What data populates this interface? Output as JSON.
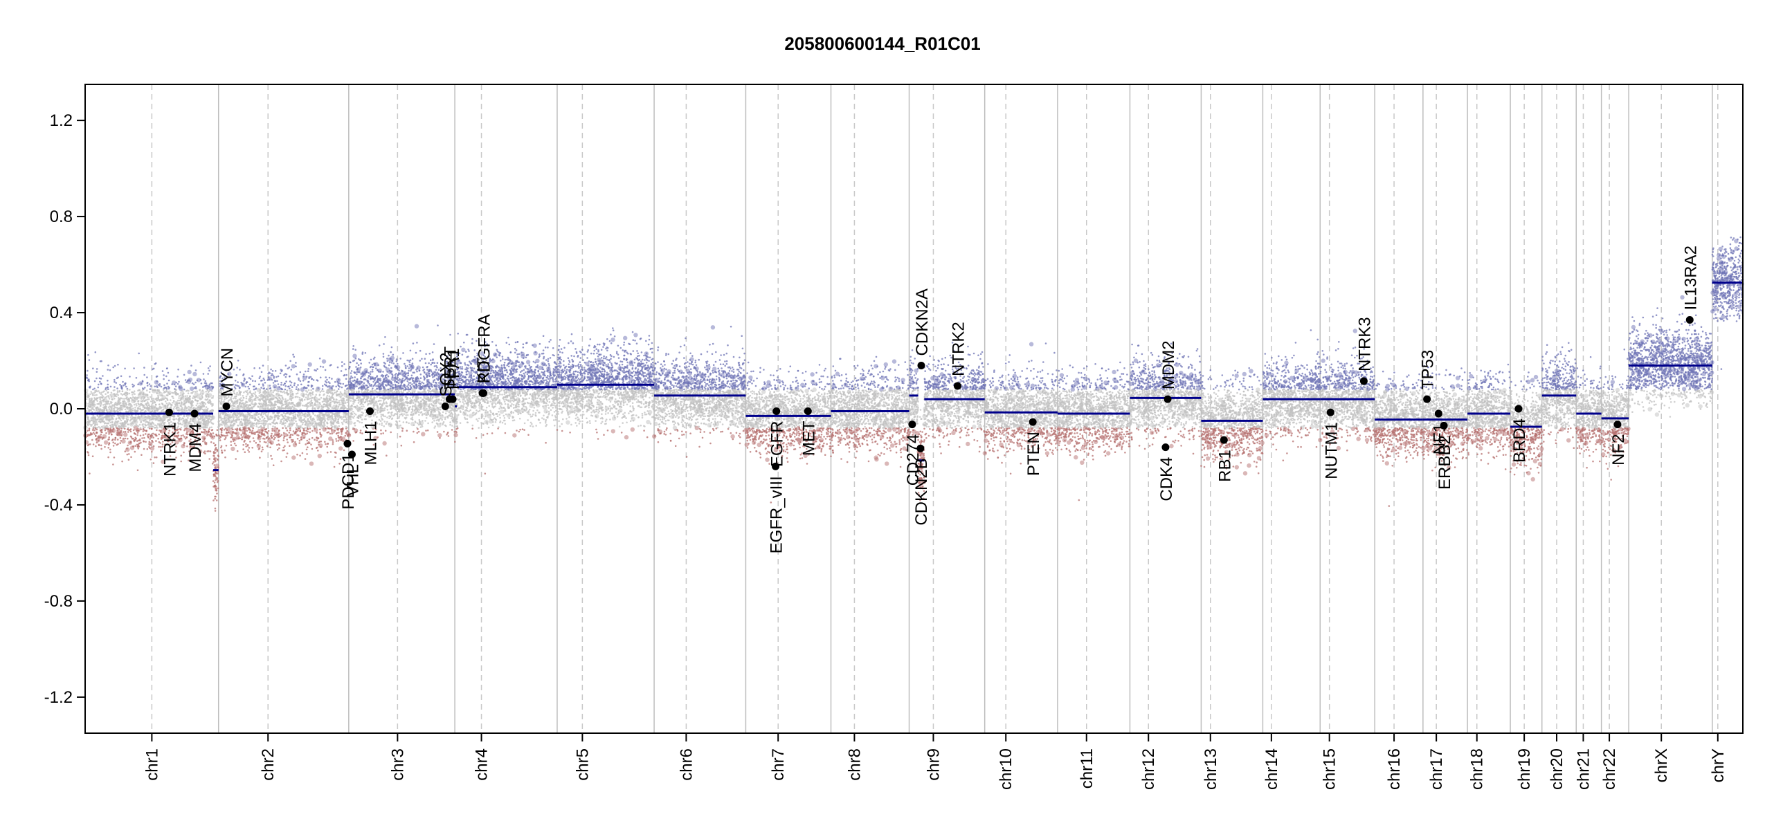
{
  "chart_data": {
    "type": "scatter",
    "title": "205800600144_R01C01",
    "xlabel": "",
    "ylabel": "",
    "ylim": [
      -1.35,
      1.35
    ],
    "yticks": [
      -1.2,
      -0.8,
      -0.4,
      0.0,
      0.4,
      0.8,
      1.2
    ],
    "ytick_labels": [
      "-1.2",
      "-0.8",
      "-0.4",
      "0.0",
      "0.4",
      "0.8",
      "1.2"
    ],
    "colors": {
      "axis": "#000000",
      "boundary": "#bdbdbd",
      "centromere": "#c8c8c8",
      "segment": "#00008b",
      "gain_points": "#6f74b5",
      "loss_points": "#b5706f",
      "neutral_points": "#c0c0c0",
      "gene_dot": "#000000"
    },
    "chromosomes": [
      {
        "name": "chr1",
        "size": 249,
        "centromere": 0.5
      },
      {
        "name": "chr2",
        "size": 243,
        "centromere": 0.38
      },
      {
        "name": "chr3",
        "size": 198,
        "centromere": 0.46
      },
      {
        "name": "chr4",
        "size": 191,
        "centromere": 0.26
      },
      {
        "name": "chr5",
        "size": 181,
        "centromere": 0.26
      },
      {
        "name": "chr6",
        "size": 171,
        "centromere": 0.35
      },
      {
        "name": "chr7",
        "size": 159,
        "centromere": 0.38
      },
      {
        "name": "chr8",
        "size": 146,
        "centromere": 0.3
      },
      {
        "name": "chr9",
        "size": 141,
        "centromere": 0.32
      },
      {
        "name": "chr10",
        "size": 136,
        "centromere": 0.29
      },
      {
        "name": "chr11",
        "size": 135,
        "centromere": 0.4
      },
      {
        "name": "chr12",
        "size": 133,
        "centromere": 0.26
      },
      {
        "name": "chr13",
        "size": 115,
        "centromere": 0.15
      },
      {
        "name": "chr14",
        "size": 107,
        "centromere": 0.15
      },
      {
        "name": "chr15",
        "size": 102,
        "centromere": 0.17
      },
      {
        "name": "chr16",
        "size": 90,
        "centromere": 0.4
      },
      {
        "name": "chr17",
        "size": 83,
        "centromere": 0.3
      },
      {
        "name": "chr18",
        "size": 80,
        "centromere": 0.22
      },
      {
        "name": "chr19",
        "size": 59,
        "centromere": 0.44
      },
      {
        "name": "chr20",
        "size": 64,
        "centromere": 0.43
      },
      {
        "name": "chr21",
        "size": 47,
        "centromere": 0.28
      },
      {
        "name": "chr22",
        "size": 51,
        "centromere": 0.29
      },
      {
        "name": "chrX",
        "size": 156,
        "centromere": 0.39
      },
      {
        "name": "chrY",
        "size": 57,
        "centromere": 0.18
      }
    ],
    "segments": [
      {
        "chr": "chr1",
        "start": 0.0,
        "end": 0.96,
        "value": -0.02
      },
      {
        "chr": "chr1",
        "start": 0.96,
        "end": 1.0,
        "value": -0.255
      },
      {
        "chr": "chr2",
        "start": 0.0,
        "end": 1.0,
        "value": -0.01
      },
      {
        "chr": "chr3",
        "start": 0.0,
        "end": 1.0,
        "value": 0.06
      },
      {
        "chr": "chr4",
        "start": 0.0,
        "end": 0.02,
        "value": 0.01
      },
      {
        "chr": "chr4",
        "start": 0.02,
        "end": 1.0,
        "value": 0.09
      },
      {
        "chr": "chr5",
        "start": 0.0,
        "end": 1.0,
        "value": 0.1
      },
      {
        "chr": "chr6",
        "start": 0.0,
        "end": 1.0,
        "value": 0.055
      },
      {
        "chr": "chr7",
        "start": 0.0,
        "end": 1.0,
        "value": -0.03
      },
      {
        "chr": "chr8",
        "start": 0.0,
        "end": 1.0,
        "value": -0.01
      },
      {
        "chr": "chr9",
        "start": 0.0,
        "end": 0.12,
        "value": 0.055
      },
      {
        "chr": "chr9",
        "start": 0.12,
        "end": 0.2,
        "value": -0.215
      },
      {
        "chr": "chr9",
        "start": 0.2,
        "end": 1.0,
        "value": 0.04
      },
      {
        "chr": "chr10",
        "start": 0.0,
        "end": 1.0,
        "value": -0.015
      },
      {
        "chr": "chr11",
        "start": 0.0,
        "end": 1.0,
        "value": -0.02
      },
      {
        "chr": "chr12",
        "start": 0.0,
        "end": 1.0,
        "value": 0.045
      },
      {
        "chr": "chr13",
        "start": 0.0,
        "end": 1.0,
        "value": -0.05
      },
      {
        "chr": "chr14",
        "start": 0.0,
        "end": 1.0,
        "value": 0.04
      },
      {
        "chr": "chr15",
        "start": 0.0,
        "end": 1.0,
        "value": 0.04
      },
      {
        "chr": "chr16",
        "start": 0.0,
        "end": 1.0,
        "value": -0.045
      },
      {
        "chr": "chr17",
        "start": 0.0,
        "end": 1.0,
        "value": -0.045
      },
      {
        "chr": "chr18",
        "start": 0.0,
        "end": 1.0,
        "value": -0.02
      },
      {
        "chr": "chr19",
        "start": 0.0,
        "end": 1.0,
        "value": -0.075
      },
      {
        "chr": "chr20",
        "start": 0.0,
        "end": 1.0,
        "value": 0.055
      },
      {
        "chr": "chr21",
        "start": 0.0,
        "end": 1.0,
        "value": -0.02
      },
      {
        "chr": "chr22",
        "start": 0.0,
        "end": 1.0,
        "value": -0.04
      },
      {
        "chr": "chrX",
        "start": 0.0,
        "end": 1.0,
        "value": 0.18
      },
      {
        "chr": "chrY",
        "start": 0.0,
        "end": 1.0,
        "value": 0.525
      }
    ],
    "genes": [
      {
        "name": "NTRK1",
        "chr": "chr1",
        "pos": 0.63,
        "value": -0.015,
        "label_side": "below"
      },
      {
        "name": "MDM4",
        "chr": "chr1",
        "pos": 0.82,
        "value": -0.02,
        "label_side": "below"
      },
      {
        "name": "MYCN",
        "chr": "chr2",
        "pos": 0.06,
        "value": 0.01,
        "label_side": "above"
      },
      {
        "name": "PDCD1",
        "chr": "chr2",
        "pos": 0.99,
        "value": -0.145,
        "label_side": "below"
      },
      {
        "name": "VHL",
        "chr": "chr3",
        "pos": 0.03,
        "value": -0.19,
        "label_side": "below"
      },
      {
        "name": "MLH1",
        "chr": "chr3",
        "pos": 0.2,
        "value": -0.01,
        "label_side": "below"
      },
      {
        "name": "SOX2",
        "chr": "chr3",
        "pos": 0.91,
        "value": 0.01,
        "label_side": "above"
      },
      {
        "name": "TERT",
        "chr": "chr5",
        "pos": -0.85,
        "value": 0.04,
        "label_side": "above",
        "pos_override_chr": "chr3"
      },
      {
        "name": "PPA1",
        "chr": "chr3",
        "pos": 0.98,
        "value": 0.04,
        "label_side": "above"
      },
      {
        "name": "KIT",
        "chr": "chr4",
        "pos": 0.27,
        "value": 0.065,
        "label_side": "above"
      },
      {
        "name": "PDGFRA",
        "chr": "chr4",
        "pos": 0.28,
        "value": 0.065,
        "label_side": "above"
      },
      {
        "name": "EGFR_vIII",
        "chr": "chr7",
        "pos": 0.35,
        "value": -0.24,
        "label_side": "below"
      },
      {
        "name": "EGFR",
        "chr": "chr7",
        "pos": 0.36,
        "value": -0.01,
        "label_side": "below"
      },
      {
        "name": "MET",
        "chr": "chr7",
        "pos": 0.73,
        "value": -0.01,
        "label_side": "below"
      },
      {
        "name": "CD274",
        "chr": "chr9",
        "pos": 0.04,
        "value": -0.065,
        "label_side": "below"
      },
      {
        "name": "CDKN2B",
        "chr": "chr9",
        "pos": 0.15,
        "value": -0.165,
        "label_side": "below"
      },
      {
        "name": "CDKN2A",
        "chr": "chr9",
        "pos": 0.16,
        "value": 0.18,
        "label_side": "above"
      },
      {
        "name": "NTRK2",
        "chr": "chr9",
        "pos": 0.64,
        "value": 0.095,
        "label_side": "above"
      },
      {
        "name": "PTEN",
        "chr": "chr10",
        "pos": 0.66,
        "value": -0.055,
        "label_side": "below"
      },
      {
        "name": "CDK4",
        "chr": "chr12",
        "pos": 0.5,
        "value": -0.16,
        "label_side": "below"
      },
      {
        "name": "MDM2",
        "chr": "chr12",
        "pos": 0.53,
        "value": 0.04,
        "label_side": "above"
      },
      {
        "name": "RB1",
        "chr": "chr13",
        "pos": 0.37,
        "value": -0.13,
        "label_side": "below"
      },
      {
        "name": "NUTM1",
        "chr": "chr15",
        "pos": 0.19,
        "value": -0.015,
        "label_side": "below"
      },
      {
        "name": "NTRK3",
        "chr": "chr15",
        "pos": 0.8,
        "value": 0.115,
        "label_side": "above"
      },
      {
        "name": "TP53",
        "chr": "chr17",
        "pos": 0.09,
        "value": 0.04,
        "label_side": "above"
      },
      {
        "name": "NF1",
        "chr": "chr17",
        "pos": 0.35,
        "value": -0.02,
        "label_side": "below"
      },
      {
        "name": "ERBB2",
        "chr": "chr17",
        "pos": 0.47,
        "value": -0.07,
        "label_side": "below"
      },
      {
        "name": "BRD4",
        "chr": "chr19",
        "pos": 0.26,
        "value": 0.0,
        "label_side": "below"
      },
      {
        "name": "NF2",
        "chr": "chr22",
        "pos": 0.59,
        "value": -0.065,
        "label_side": "below"
      },
      {
        "name": "IL13RA2",
        "chr": "chrX",
        "pos": 0.73,
        "value": 0.37,
        "label_side": "above"
      }
    ]
  }
}
